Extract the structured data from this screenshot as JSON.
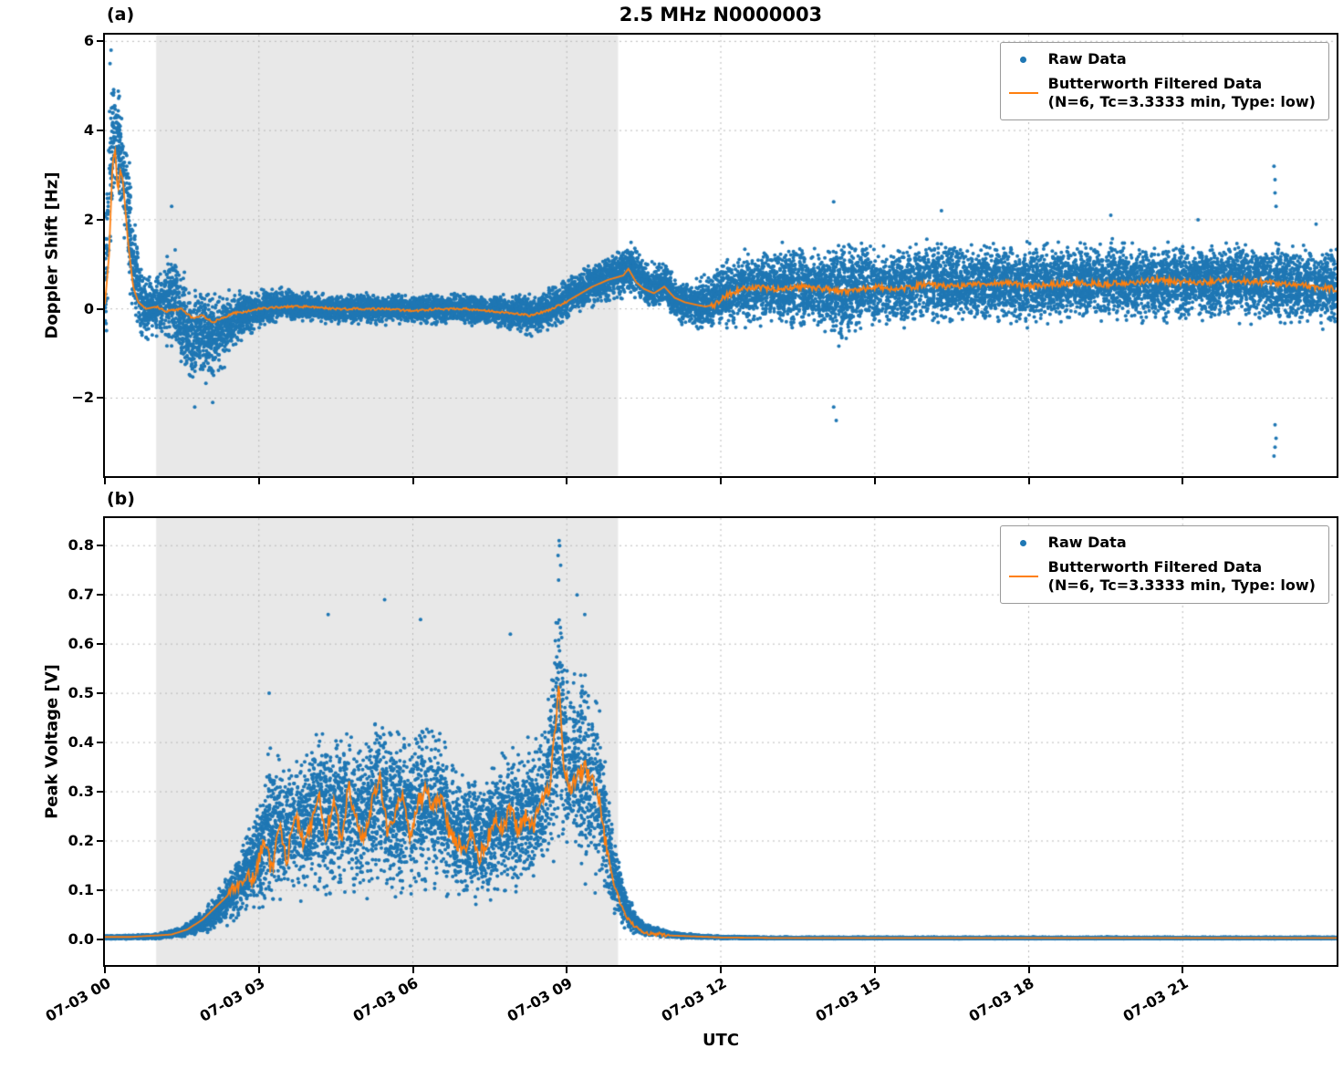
{
  "figure": {
    "title": "2.5 MHz N0000003",
    "xlabel": "UTC"
  },
  "legend": {
    "raw_label": "Raw Data",
    "filtered_label": "Butterworth Filtered Data",
    "filtered_sublabel": "(N=6, Tc=3.3333 min, Type: low)"
  },
  "colors": {
    "raw": "#1f77b4",
    "filtered": "#ff7f0e",
    "band": "#e8e8e8",
    "grid": "#b9b9b9",
    "axis": "#000000"
  },
  "xaxis": {
    "unit": "hours since 07-03 00:00 UTC",
    "range": [
      0,
      24
    ],
    "ticks": [
      0,
      3,
      6,
      9,
      12,
      15,
      18,
      21
    ],
    "tick_labels": [
      "07-03 00",
      "07-03 03",
      "07-03 06",
      "07-03 09",
      "07-03 12",
      "07-03 15",
      "07-03 18",
      "07-03 21"
    ],
    "band": [
      1.0,
      10.0
    ]
  },
  "chart_data": [
    {
      "type": "scatter",
      "panel": "(a)",
      "title": "2.5 MHz N0000003",
      "ylabel": "Doppler Shift [Hz]",
      "ylim": [
        -3.75,
        6.15
      ],
      "yticks": [
        -2,
        0,
        2,
        4,
        6
      ],
      "ytick_labels": [
        "−2",
        "0",
        "2",
        "4",
        "6"
      ],
      "series": [
        {
          "name": "Raw Data",
          "type": "scatter",
          "color": "#1f77b4"
        },
        {
          "name": "Butterworth Filtered Data (N=6, Tc=3.3333 min, Type: low)",
          "type": "line",
          "color": "#ff7f0e"
        }
      ],
      "line": [
        [
          0.0,
          0.1
        ],
        [
          0.08,
          1.2
        ],
        [
          0.15,
          3.3
        ],
        [
          0.2,
          3.55
        ],
        [
          0.25,
          2.6
        ],
        [
          0.3,
          3.1
        ],
        [
          0.35,
          2.9
        ],
        [
          0.45,
          1.5
        ],
        [
          0.55,
          0.5
        ],
        [
          0.65,
          0.15
        ],
        [
          0.8,
          0.0
        ],
        [
          1.0,
          0.05
        ],
        [
          1.2,
          -0.05
        ],
        [
          1.5,
          0.0
        ],
        [
          1.7,
          -0.2
        ],
        [
          1.9,
          -0.15
        ],
        [
          2.1,
          -0.3
        ],
        [
          2.3,
          -0.2
        ],
        [
          2.5,
          -0.1
        ],
        [
          2.8,
          -0.05
        ],
        [
          3.0,
          0.0
        ],
        [
          3.5,
          0.05
        ],
        [
          4.0,
          0.05
        ],
        [
          4.5,
          0.0
        ],
        [
          5.0,
          0.0
        ],
        [
          5.5,
          0.0
        ],
        [
          6.0,
          -0.05
        ],
        [
          6.5,
          0.0
        ],
        [
          7.0,
          0.0
        ],
        [
          7.5,
          -0.05
        ],
        [
          8.0,
          -0.1
        ],
        [
          8.3,
          -0.15
        ],
        [
          8.6,
          -0.05
        ],
        [
          8.9,
          0.1
        ],
        [
          9.2,
          0.3
        ],
        [
          9.5,
          0.5
        ],
        [
          9.8,
          0.65
        ],
        [
          10.1,
          0.75
        ],
        [
          10.2,
          0.9
        ],
        [
          10.35,
          0.6
        ],
        [
          10.5,
          0.45
        ],
        [
          10.7,
          0.35
        ],
        [
          10.9,
          0.5
        ],
        [
          11.1,
          0.25
        ],
        [
          11.3,
          0.15
        ],
        [
          11.5,
          0.1
        ],
        [
          11.7,
          0.05
        ],
        [
          11.9,
          0.1
        ],
        [
          12.1,
          0.3
        ],
        [
          12.4,
          0.45
        ],
        [
          12.7,
          0.5
        ],
        [
          13.0,
          0.45
        ],
        [
          13.5,
          0.5
        ],
        [
          14.0,
          0.45
        ],
        [
          14.5,
          0.4
        ],
        [
          15.0,
          0.5
        ],
        [
          15.5,
          0.45
        ],
        [
          16.0,
          0.55
        ],
        [
          16.5,
          0.5
        ],
        [
          17.0,
          0.55
        ],
        [
          17.5,
          0.6
        ],
        [
          18.0,
          0.5
        ],
        [
          18.5,
          0.55
        ],
        [
          19.0,
          0.6
        ],
        [
          19.5,
          0.55
        ],
        [
          20.0,
          0.6
        ],
        [
          20.5,
          0.65
        ],
        [
          21.0,
          0.6
        ],
        [
          21.5,
          0.6
        ],
        [
          22.0,
          0.65
        ],
        [
          22.5,
          0.6
        ],
        [
          23.0,
          0.55
        ],
        [
          23.5,
          0.5
        ],
        [
          24.0,
          0.45
        ]
      ],
      "envelope": [
        [
          0.0,
          0.5,
          2.0
        ],
        [
          0.05,
          1.5,
          2.5
        ],
        [
          0.1,
          3.0,
          2.6
        ],
        [
          0.15,
          3.8,
          1.9
        ],
        [
          0.25,
          3.9,
          1.5
        ],
        [
          0.35,
          3.2,
          1.5
        ],
        [
          0.45,
          2.2,
          1.8
        ],
        [
          0.55,
          1.0,
          1.5
        ],
        [
          0.7,
          0.2,
          1.0
        ],
        [
          0.85,
          0.0,
          0.9
        ],
        [
          1.0,
          0.1,
          0.9
        ],
        [
          1.2,
          0.2,
          1.1
        ],
        [
          1.35,
          0.3,
          1.5
        ],
        [
          1.5,
          -0.3,
          1.3
        ],
        [
          1.7,
          -0.6,
          1.4
        ],
        [
          1.9,
          -0.5,
          1.3
        ],
        [
          2.1,
          -0.6,
          1.2
        ],
        [
          2.3,
          -0.5,
          1.1
        ],
        [
          2.5,
          -0.3,
          0.9
        ],
        [
          2.8,
          -0.1,
          0.6
        ],
        [
          3.0,
          0.0,
          0.5
        ],
        [
          3.5,
          0.1,
          0.42
        ],
        [
          4.0,
          0.05,
          0.4
        ],
        [
          4.5,
          0.0,
          0.38
        ],
        [
          5.0,
          0.0,
          0.4
        ],
        [
          5.5,
          0.0,
          0.4
        ],
        [
          6.0,
          0.0,
          0.4
        ],
        [
          6.5,
          0.0,
          0.4
        ],
        [
          7.0,
          0.0,
          0.42
        ],
        [
          7.5,
          -0.05,
          0.45
        ],
        [
          8.0,
          -0.1,
          0.5
        ],
        [
          8.4,
          -0.15,
          0.5
        ],
        [
          8.8,
          0.1,
          0.55
        ],
        [
          9.2,
          0.35,
          0.55
        ],
        [
          9.6,
          0.6,
          0.6
        ],
        [
          10.0,
          0.8,
          0.65
        ],
        [
          10.3,
          0.9,
          0.7
        ],
        [
          10.6,
          0.5,
          0.65
        ],
        [
          10.9,
          0.6,
          0.6
        ],
        [
          11.1,
          0.2,
          0.55
        ],
        [
          11.4,
          0.1,
          0.6
        ],
        [
          11.7,
          0.1,
          0.75
        ],
        [
          12.0,
          0.3,
          0.9
        ],
        [
          12.5,
          0.45,
          1.0
        ],
        [
          13.0,
          0.5,
          1.05
        ],
        [
          13.5,
          0.5,
          1.05
        ],
        [
          14.0,
          0.45,
          1.1
        ],
        [
          14.3,
          0.4,
          1.5
        ],
        [
          14.6,
          0.5,
          1.2
        ],
        [
          15.0,
          0.5,
          1.1
        ],
        [
          16.0,
          0.55,
          1.1
        ],
        [
          17.0,
          0.55,
          1.1
        ],
        [
          18.0,
          0.55,
          1.05
        ],
        [
          19.0,
          0.6,
          1.05
        ],
        [
          20.0,
          0.6,
          1.05
        ],
        [
          21.0,
          0.6,
          1.05
        ],
        [
          22.0,
          0.65,
          1.05
        ],
        [
          23.0,
          0.55,
          1.05
        ],
        [
          24.0,
          0.5,
          1.05
        ]
      ],
      "outliers": [
        [
          0.12,
          5.8
        ],
        [
          0.1,
          5.5
        ],
        [
          1.3,
          2.3
        ],
        [
          1.75,
          -2.2
        ],
        [
          2.1,
          -2.1
        ],
        [
          14.2,
          2.4
        ],
        [
          14.25,
          -2.5
        ],
        [
          14.2,
          -2.2
        ],
        [
          16.3,
          2.2
        ],
        [
          19.6,
          2.1
        ],
        [
          21.3,
          2.0
        ],
        [
          22.78,
          3.2
        ],
        [
          22.8,
          2.9
        ],
        [
          22.8,
          2.6
        ],
        [
          22.82,
          2.3
        ],
        [
          22.8,
          -2.6
        ],
        [
          22.82,
          -2.9
        ],
        [
          22.8,
          -3.1
        ],
        [
          22.78,
          -3.3
        ],
        [
          23.6,
          1.9
        ]
      ],
      "jitter": [
        {
          "t0": 1.0,
          "t1": 9.0,
          "amp": 0.025
        },
        {
          "t0": 11.8,
          "t1": 24.0,
          "amp": 0.07
        }
      ],
      "synth": {
        "seed": 1234,
        "n_points": 15000,
        "marker_r": 2,
        "clamp_min": null
      }
    },
    {
      "type": "scatter",
      "panel": "(b)",
      "ylabel": "Peak Voltage [V]",
      "ylim": [
        -0.052,
        0.856
      ],
      "yticks": [
        0.0,
        0.1,
        0.2,
        0.3,
        0.4,
        0.5,
        0.6,
        0.7,
        0.8
      ],
      "ytick_labels": [
        "0.0",
        "0.1",
        "0.2",
        "0.3",
        "0.4",
        "0.5",
        "0.6",
        "0.7",
        "0.8"
      ],
      "series": [
        {
          "name": "Raw Data",
          "type": "scatter",
          "color": "#1f77b4"
        },
        {
          "name": "Butterworth Filtered Data (N=6, Tc=3.3333 min, Type: low)",
          "type": "line",
          "color": "#ff7f0e"
        }
      ],
      "line": [
        [
          0.0,
          0.005
        ],
        [
          0.5,
          0.005
        ],
        [
          1.0,
          0.008
        ],
        [
          1.3,
          0.01
        ],
        [
          1.6,
          0.02
        ],
        [
          1.9,
          0.04
        ],
        [
          2.1,
          0.06
        ],
        [
          2.3,
          0.08
        ],
        [
          2.5,
          0.1
        ],
        [
          2.7,
          0.13
        ],
        [
          2.9,
          0.12
        ],
        [
          3.1,
          0.2
        ],
        [
          3.25,
          0.14
        ],
        [
          3.4,
          0.24
        ],
        [
          3.55,
          0.16
        ],
        [
          3.7,
          0.26
        ],
        [
          3.85,
          0.2
        ],
        [
          4.0,
          0.22
        ],
        [
          4.15,
          0.3
        ],
        [
          4.3,
          0.2
        ],
        [
          4.45,
          0.29
        ],
        [
          4.6,
          0.2
        ],
        [
          4.75,
          0.31
        ],
        [
          4.9,
          0.24
        ],
        [
          5.05,
          0.2
        ],
        [
          5.2,
          0.28
        ],
        [
          5.35,
          0.33
        ],
        [
          5.5,
          0.22
        ],
        [
          5.65,
          0.25
        ],
        [
          5.8,
          0.3
        ],
        [
          5.95,
          0.2
        ],
        [
          6.1,
          0.28
        ],
        [
          6.25,
          0.3
        ],
        [
          6.4,
          0.26
        ],
        [
          6.55,
          0.3
        ],
        [
          6.7,
          0.22
        ],
        [
          6.85,
          0.2
        ],
        [
          7.0,
          0.18
        ],
        [
          7.15,
          0.22
        ],
        [
          7.3,
          0.17
        ],
        [
          7.45,
          0.2
        ],
        [
          7.6,
          0.25
        ],
        [
          7.75,
          0.22
        ],
        [
          7.9,
          0.27
        ],
        [
          8.05,
          0.22
        ],
        [
          8.2,
          0.25
        ],
        [
          8.35,
          0.23
        ],
        [
          8.5,
          0.28
        ],
        [
          8.65,
          0.3
        ],
        [
          8.75,
          0.4
        ],
        [
          8.85,
          0.51
        ],
        [
          8.95,
          0.35
        ],
        [
          9.05,
          0.3
        ],
        [
          9.2,
          0.33
        ],
        [
          9.35,
          0.35
        ],
        [
          9.5,
          0.32
        ],
        [
          9.6,
          0.3
        ],
        [
          9.75,
          0.2
        ],
        [
          9.9,
          0.12
        ],
        [
          10.05,
          0.07
        ],
        [
          10.2,
          0.04
        ],
        [
          10.4,
          0.02
        ],
        [
          10.6,
          0.012
        ],
        [
          10.8,
          0.01
        ],
        [
          11.0,
          0.008
        ],
        [
          11.5,
          0.006
        ],
        [
          12.0,
          0.004
        ],
        [
          13.0,
          0.003
        ],
        [
          14.0,
          0.003
        ],
        [
          16.0,
          0.003
        ],
        [
          18.0,
          0.003
        ],
        [
          20.0,
          0.003
        ],
        [
          22.0,
          0.003
        ],
        [
          24.0,
          0.003
        ]
      ],
      "envelope": [
        [
          0.0,
          0.004,
          0.004
        ],
        [
          1.0,
          0.006,
          0.006
        ],
        [
          1.5,
          0.015,
          0.012
        ],
        [
          2.0,
          0.04,
          0.03
        ],
        [
          2.3,
          0.07,
          0.05
        ],
        [
          2.6,
          0.11,
          0.08
        ],
        [
          2.9,
          0.15,
          0.12
        ],
        [
          3.2,
          0.22,
          0.18
        ],
        [
          3.5,
          0.22,
          0.16
        ],
        [
          3.8,
          0.24,
          0.18
        ],
        [
          4.1,
          0.26,
          0.2
        ],
        [
          4.4,
          0.25,
          0.19
        ],
        [
          4.7,
          0.27,
          0.2
        ],
        [
          5.0,
          0.24,
          0.18
        ],
        [
          5.3,
          0.3,
          0.2
        ],
        [
          5.6,
          0.26,
          0.2
        ],
        [
          5.9,
          0.25,
          0.19
        ],
        [
          6.2,
          0.28,
          0.2
        ],
        [
          6.5,
          0.27,
          0.2
        ],
        [
          6.8,
          0.22,
          0.16
        ],
        [
          7.1,
          0.2,
          0.15
        ],
        [
          7.4,
          0.2,
          0.15
        ],
        [
          7.7,
          0.24,
          0.17
        ],
        [
          8.0,
          0.25,
          0.17
        ],
        [
          8.3,
          0.25,
          0.17
        ],
        [
          8.6,
          0.3,
          0.2
        ],
        [
          8.85,
          0.45,
          0.3
        ],
        [
          9.0,
          0.35,
          0.25
        ],
        [
          9.3,
          0.35,
          0.25
        ],
        [
          9.6,
          0.3,
          0.22
        ],
        [
          9.8,
          0.18,
          0.14
        ],
        [
          10.0,
          0.1,
          0.08
        ],
        [
          10.2,
          0.05,
          0.04
        ],
        [
          10.5,
          0.02,
          0.015
        ],
        [
          11.0,
          0.01,
          0.008
        ],
        [
          11.5,
          0.006,
          0.005
        ],
        [
          12.0,
          0.004,
          0.003
        ],
        [
          13.0,
          0.003,
          0.002
        ],
        [
          24.0,
          0.003,
          0.002
        ]
      ],
      "outliers": [
        [
          8.83,
          0.78
        ],
        [
          8.85,
          0.81
        ],
        [
          8.86,
          0.8
        ],
        [
          8.88,
          0.76
        ],
        [
          8.84,
          0.73
        ],
        [
          5.45,
          0.69
        ],
        [
          4.35,
          0.66
        ],
        [
          6.15,
          0.65
        ],
        [
          9.2,
          0.7
        ],
        [
          9.35,
          0.66
        ],
        [
          3.2,
          0.5
        ],
        [
          7.9,
          0.62
        ]
      ],
      "jitter": [
        {
          "t0": 2.4,
          "t1": 9.8,
          "amp": 0.018
        },
        {
          "t0": 9.8,
          "t1": 11.0,
          "amp": 0.004
        }
      ],
      "synth": {
        "seed": 5678,
        "n_points": 15000,
        "marker_r": 2,
        "clamp_min": -0.004
      }
    }
  ]
}
